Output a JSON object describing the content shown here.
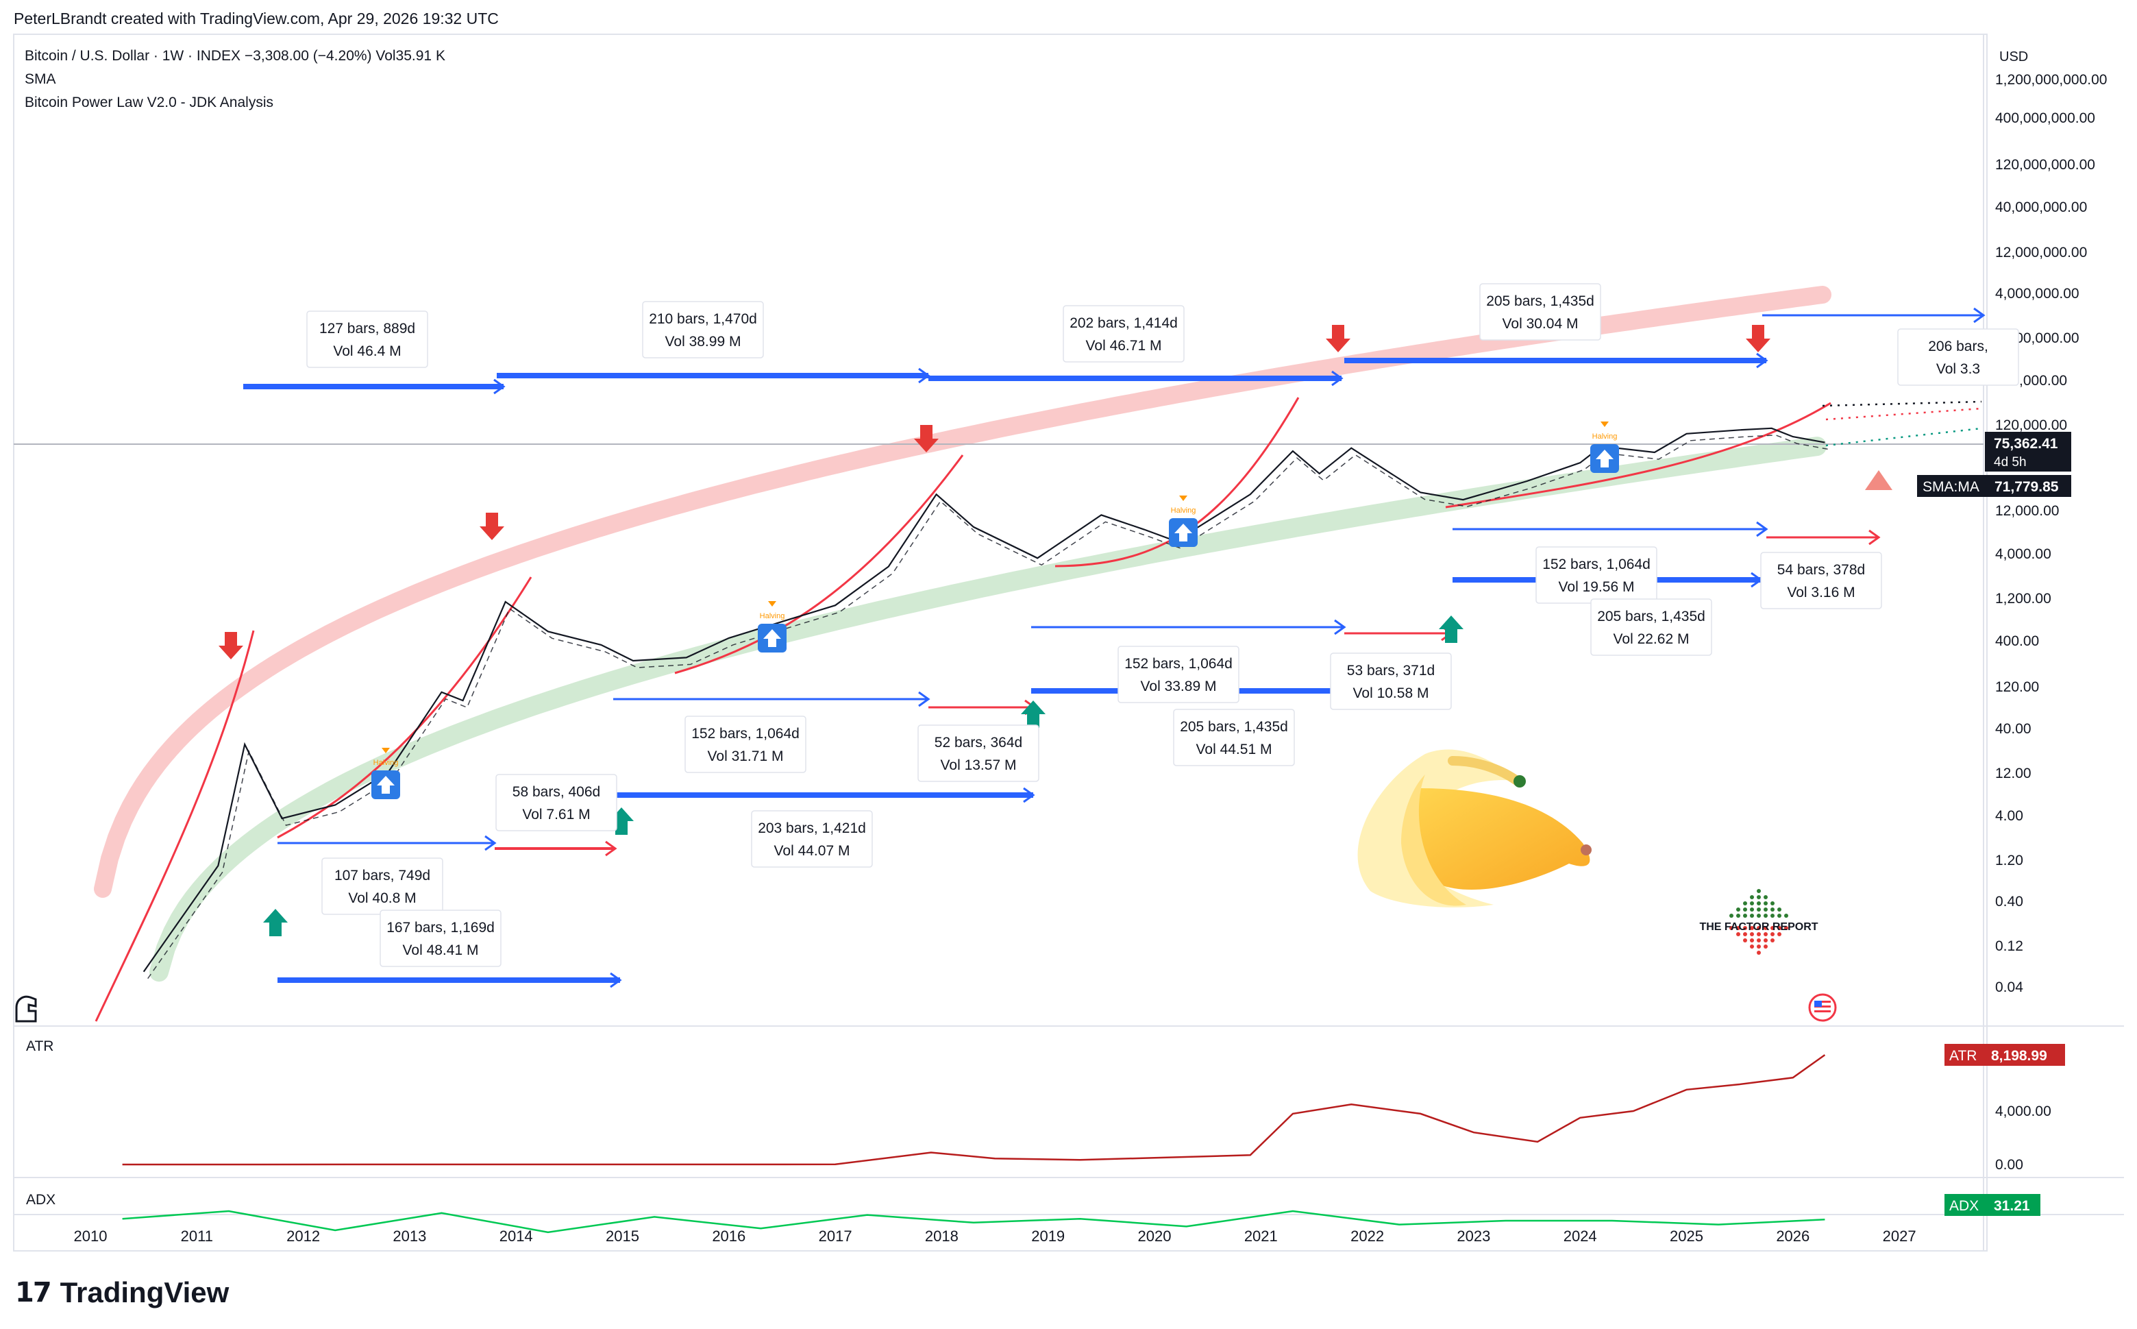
{
  "header": {
    "credit": "PeterLBrandt created with TradingView.com, Apr 29, 2026 19:32 UTC"
  },
  "legend": {
    "symbol_line": "Bitcoin / U.S. Dollar · 1W · INDEX  −3,308.00 (−4.20%)  Vol35.91 K",
    "sma": "SMA",
    "indicator": "Bitcoin Power Law V2.0 - JDK Analysis"
  },
  "currency": "USD",
  "brand": "TradingView",
  "watermark": "THE FACTOR REPORT",
  "colors": {
    "blue": "#2962ff",
    "red": "#f23645",
    "teal": "#089981",
    "pink_band": "#f7a6a6",
    "green_band": "#a5d6a7",
    "atr": "#b71c1c",
    "adx": "#00c853",
    "price_line": "#131722"
  },
  "chart_data": [
    {
      "type": "line",
      "title": "Bitcoin / U.S. Dollar · 1W · INDEX",
      "scale": "log",
      "x_axis": {
        "tick_labels": [
          "2010",
          "2011",
          "2012",
          "2013",
          "2014",
          "2015",
          "2016",
          "2017",
          "2018",
          "2019",
          "2020",
          "2021",
          "2022",
          "2023",
          "2024",
          "2025",
          "2026",
          "2027"
        ]
      },
      "y_axis": {
        "tick_labels": [
          "0.04",
          "0.12",
          "0.40",
          "1.20",
          "4.00",
          "12.00",
          "40.00",
          "120.00",
          "400.00",
          "1,200.00",
          "4,000.00",
          "12,000.00",
          "120,000.00",
          "400,000.00",
          "1,200,000.00",
          "4,000,000.00",
          "12,000,000.00",
          "40,000,000.00",
          "120,000,000.00",
          "400,000,000.00",
          "1,200,000,000.00"
        ]
      },
      "series": [
        {
          "x": [
            2010.5,
            2010.9,
            2011.2,
            2011.45,
            2011.8,
            2012.3,
            2012.8,
            2013.3,
            2013.5,
            2013.9,
            2014.3,
            2014.8,
            2015.1,
            2015.6,
            2016.0,
            2016.5,
            2017.0,
            2017.5,
            2017.95,
            2018.3,
            2018.9,
            2019.5,
            2019.9,
            2020.2,
            2020.9,
            2021.3,
            2021.55,
            2021.85,
            2022.5,
            2022.9,
            2023.5,
            2024.0,
            2024.2,
            2024.7,
            2025.0,
            2025.5,
            2025.8,
            2026.0,
            2026.3
          ],
          "y": [
            0.06,
            0.3,
            1.0,
            25,
            3.5,
            5,
            12,
            100,
            80,
            1100,
            500,
            350,
            230,
            250,
            420,
            650,
            1000,
            2800,
            19000,
            8000,
            3500,
            11000,
            7500,
            5500,
            19000,
            60000,
            33000,
            65000,
            20000,
            16500,
            27000,
            44000,
            68000,
            58000,
            95000,
            105000,
            110000,
            88000,
            75362.41
          ]
        }
      ],
      "annotations": [
        {
          "label": "127 bars, 889d",
          "vol": "Vol 46.4 M"
        },
        {
          "label": "210 bars, 1,470d",
          "vol": "Vol 38.99 M"
        },
        {
          "label": "202 bars, 1,414d",
          "vol": "Vol 46.71 M"
        },
        {
          "label": "205 bars, 1,435d",
          "vol": "Vol 30.04 M"
        },
        {
          "label": "206 bars,",
          "vol": "Vol 3.3"
        },
        {
          "label": "107 bars, 749d",
          "vol": "Vol 40.8 M"
        },
        {
          "label": "58 bars, 406d",
          "vol": "Vol 7.61 M"
        },
        {
          "label": "167 bars, 1,169d",
          "vol": "Vol 48.41 M"
        },
        {
          "label": "152 bars, 1,064d",
          "vol": "Vol 31.71 M"
        },
        {
          "label": "203 bars, 1,421d",
          "vol": "Vol 44.07 M"
        },
        {
          "label": "52 bars, 364d",
          "vol": "Vol 13.57 M"
        },
        {
          "label": "152 bars, 1,064d",
          "vol": "Vol 33.89 M"
        },
        {
          "label": "205 bars, 1,435d",
          "vol": "Vol 44.51 M"
        },
        {
          "label": "53 bars, 371d",
          "vol": "Vol 10.58 M"
        },
        {
          "label": "152 bars, 1,064d",
          "vol": "Vol 19.56 M"
        },
        {
          "label": "205 bars, 1,435d",
          "vol": "Vol 22.62 M"
        },
        {
          "label": "54 bars, 378d",
          "vol": "Vol 3.16 M"
        }
      ],
      "halving_label": "Halving",
      "price_tag": {
        "value": "75,362.41",
        "countdown": "4d 5h"
      },
      "sma_tag": {
        "label": "SMA:MA",
        "value": "71,779.85"
      }
    },
    {
      "type": "line",
      "title": "ATR",
      "y_axis": {
        "tick_labels": [
          "4,000.00",
          "0.00"
        ]
      },
      "series": [
        {
          "name": "ATR",
          "x": [
            2010.3,
            2017.0,
            2017.9,
            2018.5,
            2019.3,
            2020.0,
            2020.9,
            2021.3,
            2021.85,
            2022.5,
            2023.0,
            2023.6,
            2024.0,
            2024.5,
            2025.0,
            2025.5,
            2026.0,
            2026.3
          ],
          "y": [
            0,
            10,
            900,
            450,
            350,
            500,
            700,
            3800,
            4500,
            3800,
            2400,
            1700,
            3500,
            4000,
            5600,
            6000,
            6500,
            8198.99
          ]
        }
      ],
      "value_tag": {
        "label": "ATR",
        "value": "8,198.99"
      }
    },
    {
      "type": "line",
      "title": "ADX",
      "series": [
        {
          "name": "ADX",
          "x": [
            2010.3,
            2011.3,
            2012.3,
            2013.3,
            2014.3,
            2015.3,
            2016.3,
            2017.3,
            2018.3,
            2019.3,
            2020.3,
            2021.3,
            2022.3,
            2023.3,
            2024.3,
            2025.3,
            2026.3
          ],
          "y": [
            32,
            40,
            20,
            38,
            18,
            34,
            22,
            36,
            28,
            32,
            24,
            40,
            26,
            30,
            30,
            26,
            31.21
          ]
        }
      ],
      "value_tag": {
        "label": "ADX",
        "value": "31.21"
      }
    }
  ]
}
